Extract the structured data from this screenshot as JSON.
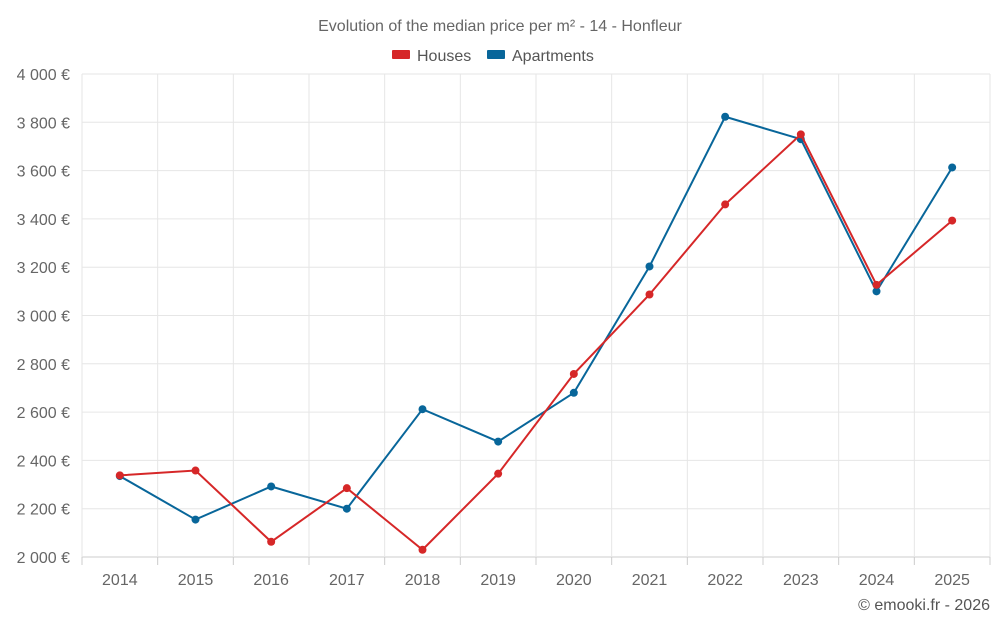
{
  "chart_data": {
    "type": "line",
    "title": "Evolution of the median price per m² - 14 - Honfleur",
    "xlabel": "",
    "ylabel": "",
    "categories": [
      "2014",
      "2015",
      "2016",
      "2017",
      "2018",
      "2019",
      "2020",
      "2021",
      "2022",
      "2023",
      "2024",
      "2025"
    ],
    "ylim": [
      2000,
      4000
    ],
    "yticks": [
      2000,
      2200,
      2400,
      2600,
      2800,
      3000,
      3200,
      3400,
      3600,
      3800,
      4000
    ],
    "ytick_labels": [
      "2 000 €",
      "2 200 €",
      "2 400 €",
      "2 600 €",
      "2 800 €",
      "3 000 €",
      "3 200 €",
      "3 400 €",
      "3 600 €",
      "3 800 €",
      "4 000 €"
    ],
    "grid": true,
    "legend_position": "top-center",
    "series": [
      {
        "name": "Houses",
        "color": "#d62728",
        "values": [
          2338,
          2358,
          2063,
          2285,
          2030,
          2345,
          2758,
          3087,
          3460,
          3750,
          3127,
          3393
        ]
      },
      {
        "name": "Apartments",
        "color": "#08669a",
        "values": [
          2335,
          2155,
          2292,
          2200,
          2612,
          2478,
          2680,
          3203,
          3823,
          3730,
          3100,
          3613
        ]
      }
    ]
  },
  "credit": "© emooki.fr - 2026"
}
